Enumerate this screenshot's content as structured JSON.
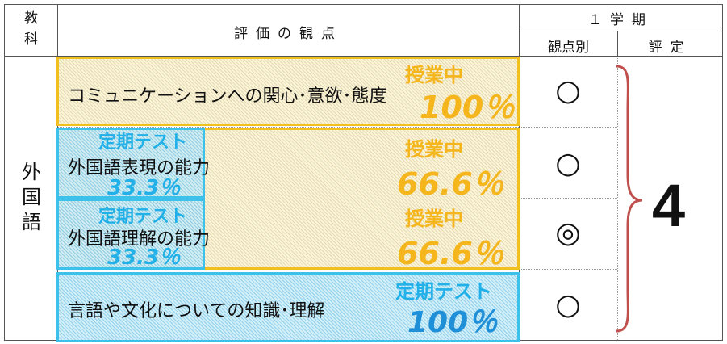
{
  "header": {
    "subject_label": "教科",
    "subject_line1": "教",
    "subject_line2": "科",
    "viewpoints_label": "評価の観点",
    "term_label": "１学期",
    "by_viewpoint_label": "観点別",
    "rating_label": "評定"
  },
  "subject": {
    "line1": "外",
    "line2": "国",
    "line3": "語"
  },
  "rows": [
    {
      "label": "コミュニケーションへの関心･意欲･態度",
      "mark": "○",
      "class_tag": "授業中",
      "class_pct": "100％"
    },
    {
      "label": "外国語表現の能力",
      "mark": "○",
      "test_tag": "定期テスト",
      "test_pct": "33.3％",
      "class_tag": "授業中",
      "class_pct": "66.6％"
    },
    {
      "label": "外国語理解の能力",
      "mark": "◎",
      "test_tag": "定期テスト",
      "test_pct": "33.3％",
      "class_tag": "授業中",
      "class_pct": "66.6％"
    },
    {
      "label": "言語や文化についての知識･理解",
      "mark": "○",
      "test_tag": "定期テスト",
      "test_pct": "100％"
    }
  ],
  "grade": "4",
  "colors": {
    "class_time": "#f5b51d",
    "regular_test": "#22b0e8",
    "brace": "#c0504d"
  }
}
